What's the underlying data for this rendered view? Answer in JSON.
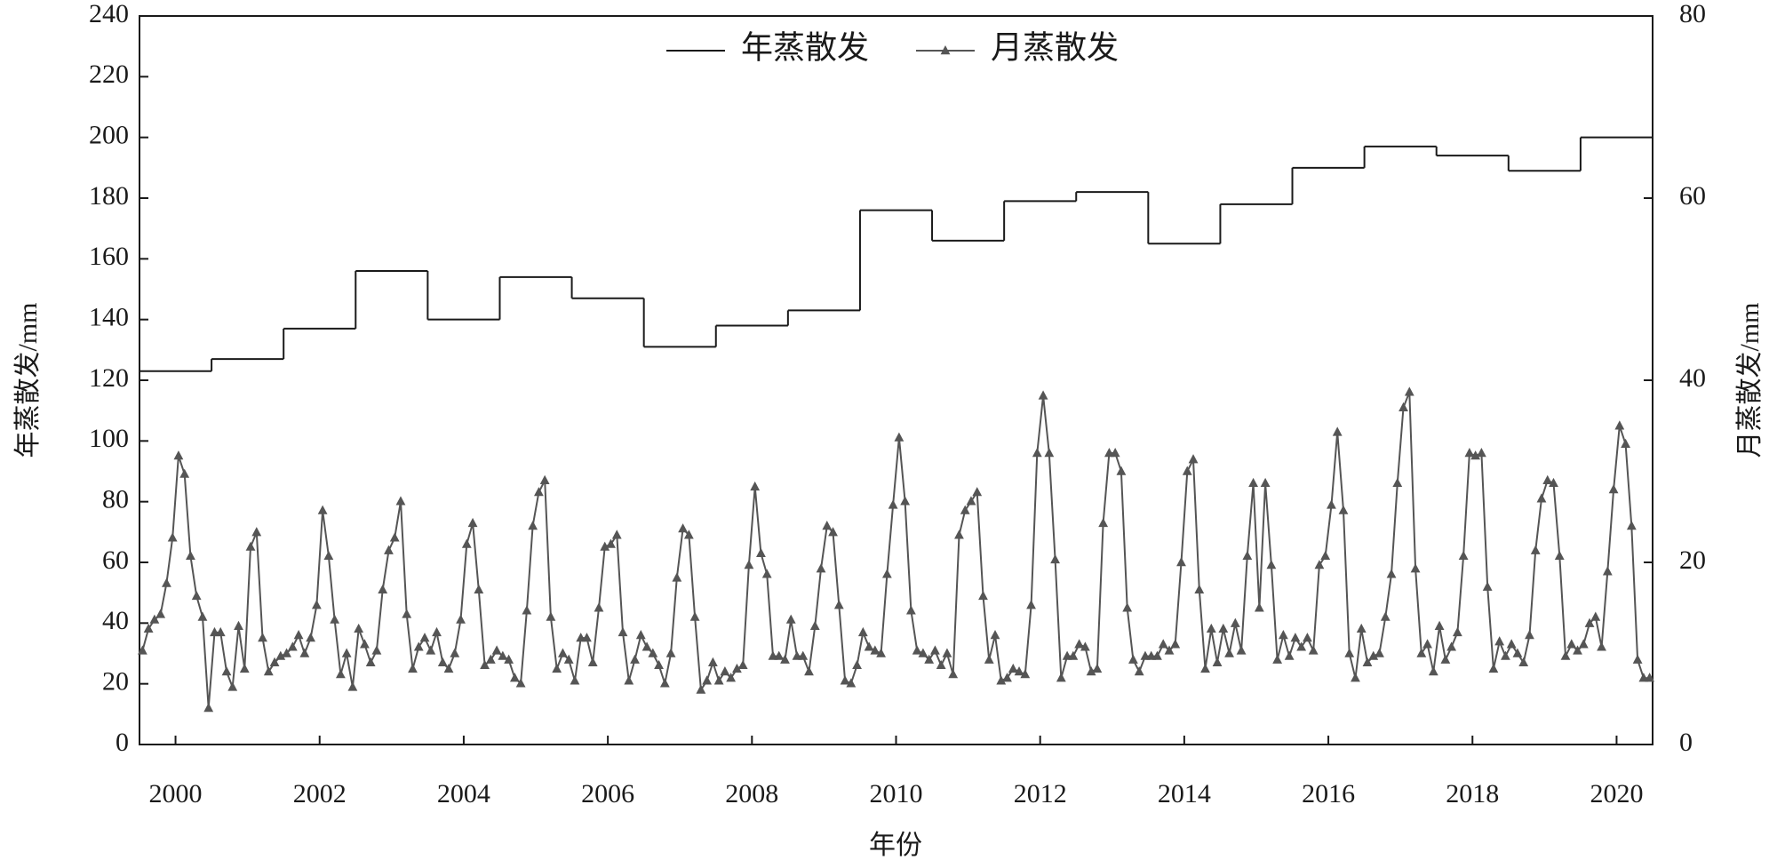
{
  "chart_data": {
    "type": "line",
    "x": [
      2000,
      2001,
      2002,
      2003,
      2004,
      2005,
      2006,
      2007,
      2008,
      2009,
      2010,
      2011,
      2012,
      2013,
      2014,
      2015,
      2016,
      2017,
      2018,
      2019,
      2020
    ],
    "xlabel": "年份",
    "ylabel": "年蒸散发/mm",
    "y2label": "月蒸散发/mm",
    "xlim": [
      2000,
      2021
    ],
    "xticks": [
      {
        "value": 2000.5,
        "label": "2000"
      },
      {
        "value": 2002.5,
        "label": "2002"
      },
      {
        "value": 2004.5,
        "label": "2004"
      },
      {
        "value": 2006.5,
        "label": "2006"
      },
      {
        "value": 2008.5,
        "label": "2008"
      },
      {
        "value": 2010.5,
        "label": "2010"
      },
      {
        "value": 2012.5,
        "label": "2012"
      },
      {
        "value": 2014.5,
        "label": "2014"
      },
      {
        "value": 2016.5,
        "label": "2016"
      },
      {
        "value": 2018.5,
        "label": "2018"
      },
      {
        "value": 2020.5,
        "label": "2020"
      }
    ],
    "ylim": [
      0,
      240
    ],
    "yticks": [
      0,
      20,
      40,
      60,
      80,
      100,
      120,
      140,
      160,
      180,
      200,
      220,
      240
    ],
    "y2lim": [
      0,
      80
    ],
    "y2ticks": [
      0,
      20,
      40,
      60,
      80
    ],
    "legend": "top",
    "series": [
      {
        "name": "年蒸散发",
        "color": "#1a1a1a",
        "style": "step",
        "values": [
          123,
          127,
          137,
          156,
          140,
          154,
          147,
          131,
          138,
          143,
          176,
          166,
          179,
          182,
          165,
          178,
          190,
          197,
          194,
          189,
          200
        ]
      },
      {
        "name": "月蒸散发",
        "color": "#555555",
        "axis": "y2",
        "marker": "triangle",
        "values": [
          [
            10.3,
            12.7,
            13.7,
            14.3,
            17.7,
            22.7,
            31.7,
            29.7,
            20.7,
            16.3,
            14,
            4
          ],
          [
            12.3,
            12.3,
            8,
            6.3,
            13,
            8.3,
            21.7,
            23.3,
            11.7,
            8,
            9,
            9.7
          ],
          [
            10,
            10.7,
            12,
            10,
            11.7,
            15.3,
            25.7,
            20.7,
            13.7,
            7.7,
            10,
            6.3
          ],
          [
            12.7,
            11,
            9,
            10.3,
            17,
            21.3,
            22.7,
            26.7,
            14.3,
            8.3,
            10.7,
            11.7
          ],
          [
            10.3,
            12.3,
            9,
            8.3,
            10,
            13.7,
            22,
            24.3,
            17,
            8.7,
            9.3,
            10.3
          ],
          [
            9.7,
            9.3,
            7.3,
            6.7,
            14.7,
            24,
            27.7,
            29,
            14,
            8.3,
            10,
            9.3
          ],
          [
            7,
            11.7,
            11.7,
            9,
            15,
            21.7,
            22,
            23,
            12.3,
            7,
            9.3,
            12
          ],
          [
            10.7,
            10,
            8.7,
            6.7,
            10,
            18.3,
            23.7,
            23,
            14,
            6,
            7,
            9
          ],
          [
            7,
            8,
            7.3,
            8.3,
            8.7,
            19.7,
            28.3,
            21,
            18.7,
            9.7,
            9.7,
            9.3
          ],
          [
            13.7,
            9.7,
            9.7,
            8,
            13,
            19.3,
            24,
            23.3,
            15.3,
            7,
            6.7,
            8.7
          ],
          [
            12.3,
            10.7,
            10.3,
            10,
            18.7,
            26.3,
            33.7,
            26.7,
            14.7,
            10.3,
            10,
            9.3
          ],
          [
            10.3,
            8.7,
            10,
            7.7,
            23,
            25.7,
            26.7,
            27.7,
            16.3,
            9.3,
            12,
            7
          ],
          [
            7.3,
            8.3,
            8,
            7.7,
            15.3,
            32,
            38.3,
            32,
            20.3,
            7.3,
            9.7,
            9.7
          ],
          [
            11,
            10.7,
            8,
            8.3,
            24.3,
            32,
            32,
            30,
            15,
            9.3,
            8,
            9.7
          ],
          [
            9.7,
            9.7,
            11,
            10.3,
            11,
            20,
            30,
            31.3,
            17,
            8.3,
            12.7,
            9
          ],
          [
            12.7,
            10,
            13.3,
            10.3,
            20.7,
            28.7,
            15,
            28.7,
            19.7,
            9.3,
            12,
            9.7
          ],
          [
            11.7,
            10.7,
            11.7,
            10.3,
            19.7,
            20.7,
            26.3,
            34.3,
            25.7,
            10,
            7.3,
            12.7
          ],
          [
            9,
            9.7,
            10,
            14,
            18.7,
            28.7,
            37,
            38.7,
            19.3,
            10,
            11,
            8
          ],
          [
            13,
            9.3,
            10.7,
            12.3,
            20.7,
            32,
            31.7,
            32,
            17.3,
            8.3,
            11.3,
            9.7
          ],
          [
            11,
            10,
            9,
            12,
            21.3,
            27,
            29,
            28.7,
            20.7,
            9.7,
            11,
            10.3
          ],
          [
            11,
            13.3,
            14,
            10.7,
            19,
            28,
            35,
            33,
            24,
            9.3,
            7.3,
            7.3
          ]
        ]
      }
    ]
  }
}
